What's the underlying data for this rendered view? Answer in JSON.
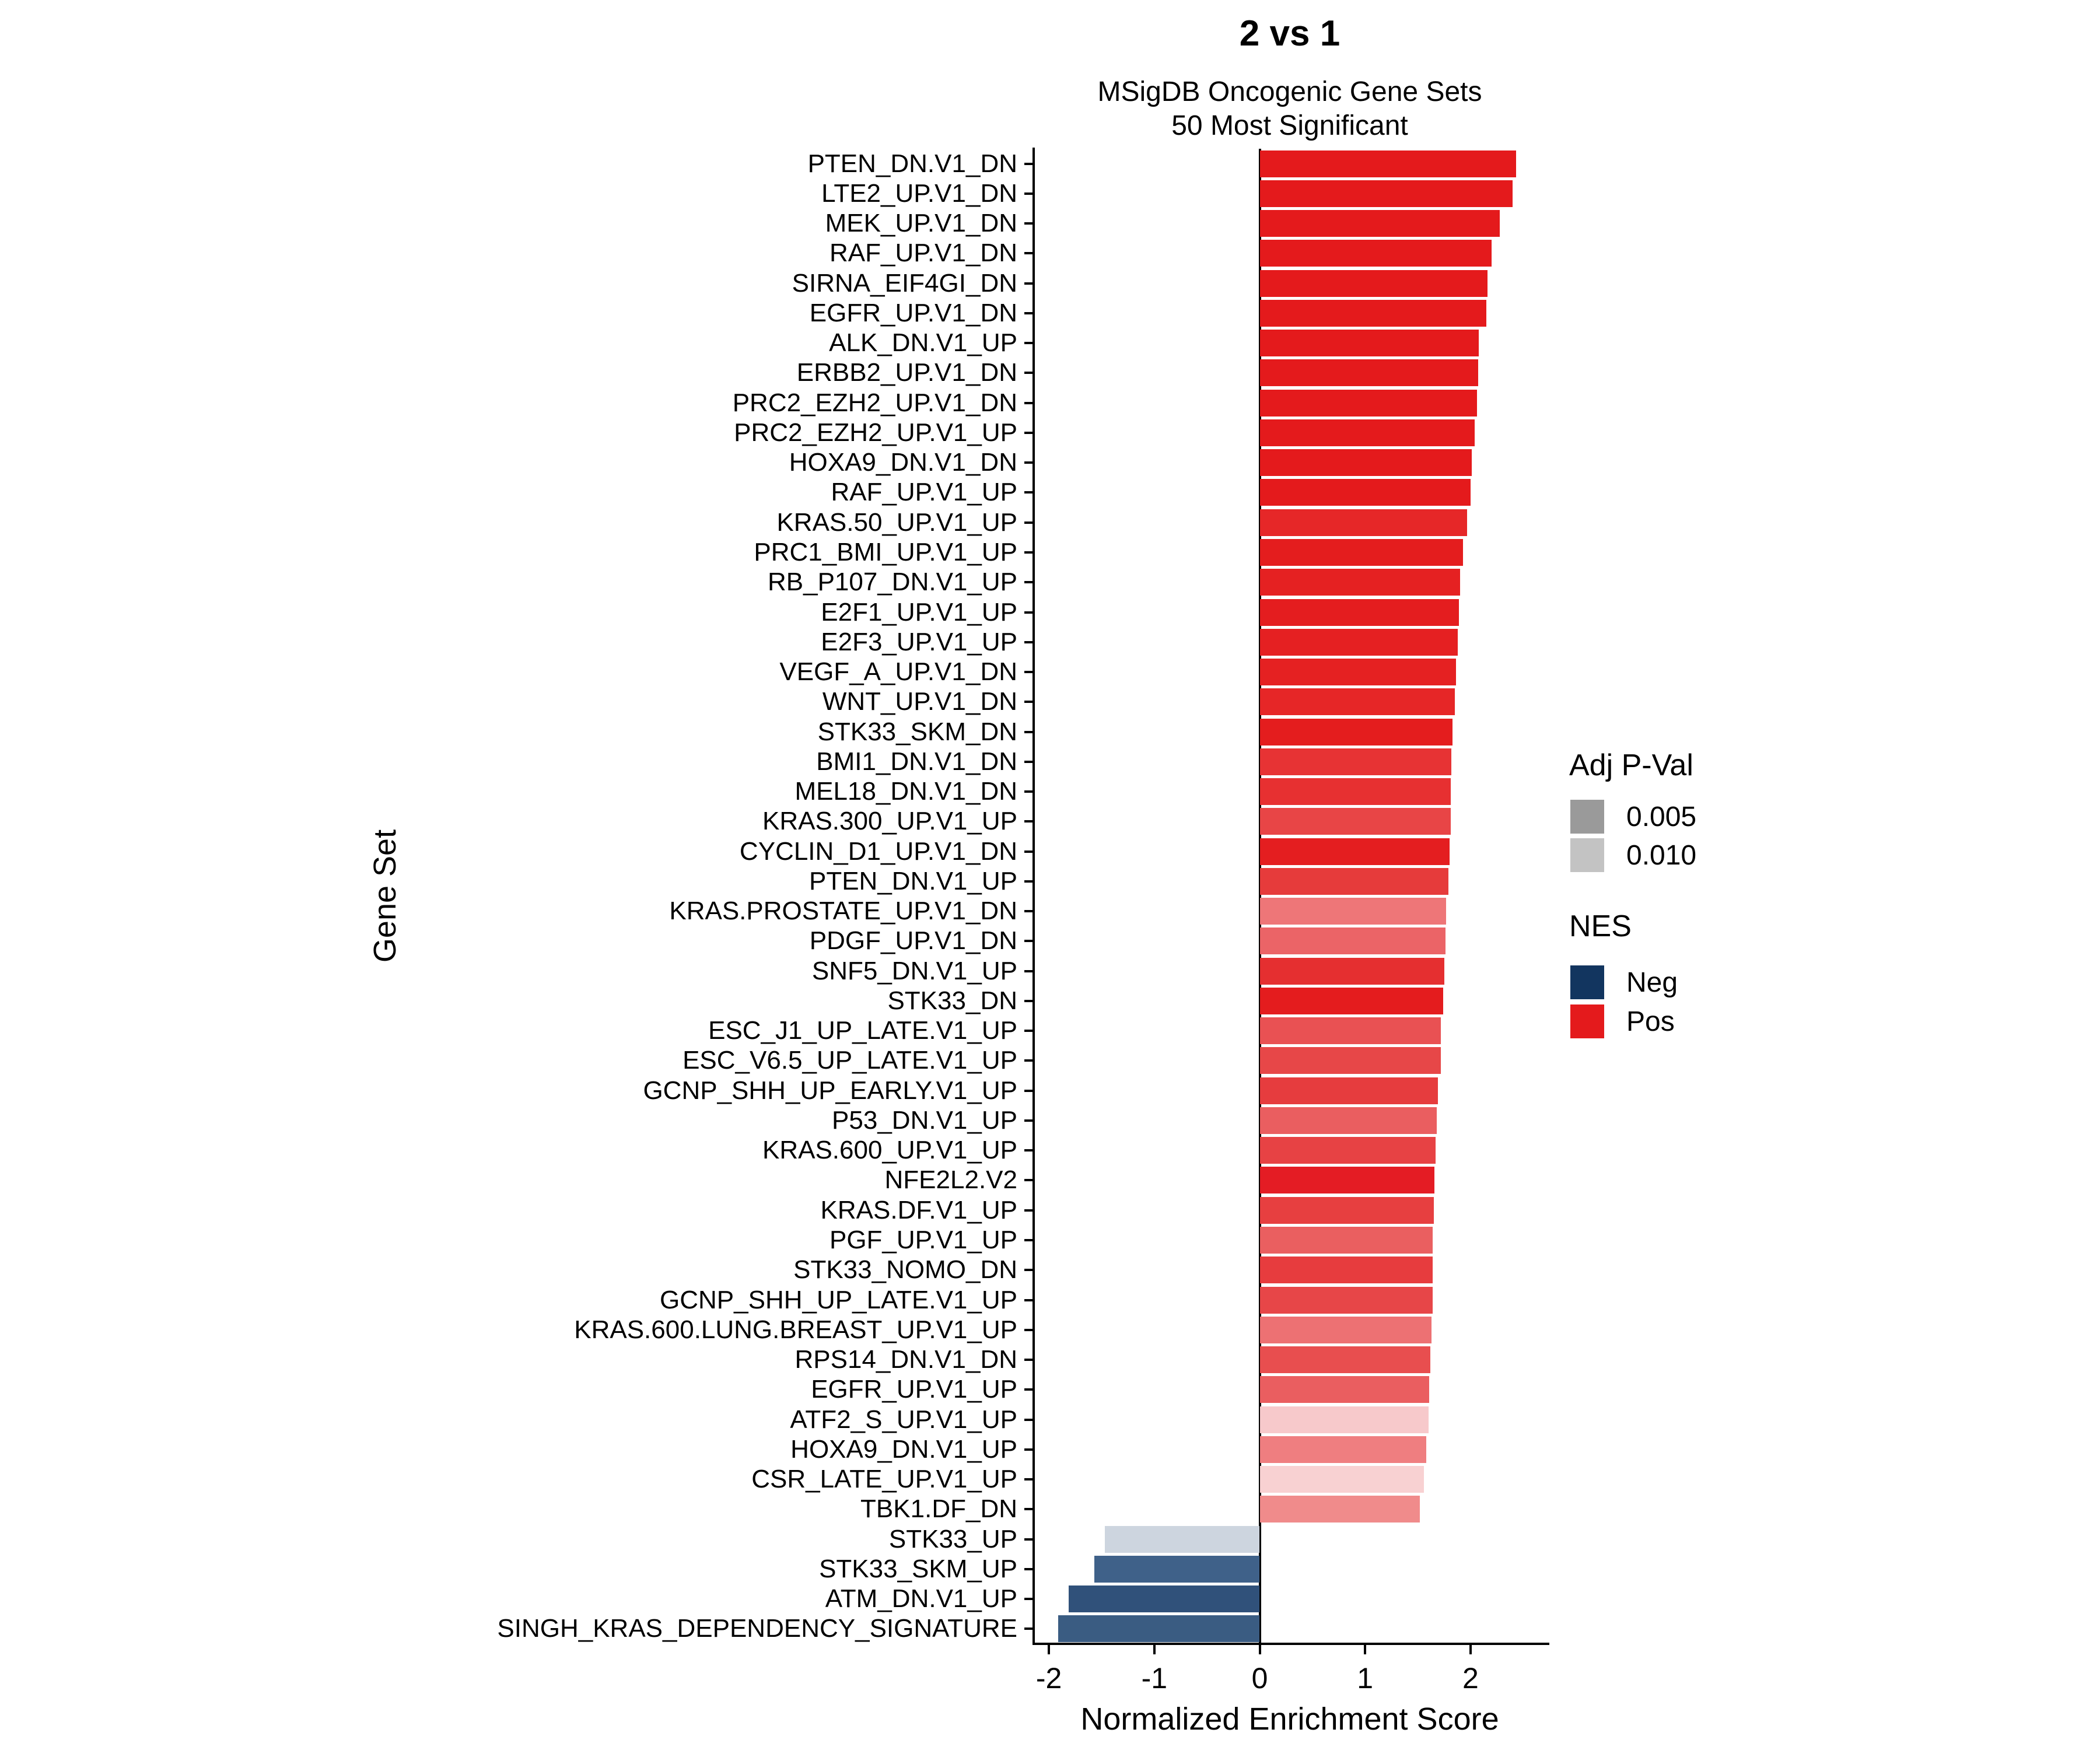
{
  "title": "2 vs 1",
  "subtitle_line1": "MSigDB Oncogenic Gene Sets",
  "subtitle_line2": "50 Most Significant",
  "legend": {
    "pval_title": "Adj P-Val",
    "pval_items": [
      {
        "label": "0.005",
        "color": "#9A9A9A"
      },
      {
        "label": "0.010",
        "color": "#C3C3C3"
      }
    ],
    "nes_title": "NES",
    "nes_items": [
      {
        "label": "Neg",
        "color": "#12355F"
      },
      {
        "label": "Pos",
        "color": "#E41A1C"
      }
    ]
  },
  "chart_data": {
    "type": "bar",
    "orientation": "horizontal",
    "title": "2 vs 1",
    "subtitle": "MSigDB Oncogenic Gene Sets / 50 Most Significant",
    "xlabel": "Normalized Enrichment Score",
    "ylabel": "Gene Set",
    "xlim": [
      -2.15,
      2.72
    ],
    "x_ticks": [
      -2,
      -1,
      0,
      1,
      2
    ],
    "grid": false,
    "legend_position": "right",
    "color_encoding": "fill = NES sign (Neg navy / Pos red), opacity = Adj P-Val (darker = more significant)",
    "bars": [
      {
        "gene_set": "PTEN_DN.V1_DN",
        "nes": 2.43,
        "color": "#E41A1C"
      },
      {
        "gene_set": "LTE2_UP.V1_DN",
        "nes": 2.4,
        "color": "#E41A1C"
      },
      {
        "gene_set": "MEK_UP.V1_DN",
        "nes": 2.28,
        "color": "#E41A1C"
      },
      {
        "gene_set": "RAF_UP.V1_DN",
        "nes": 2.2,
        "color": "#E41A1C"
      },
      {
        "gene_set": "SIRNA_EIF4GI_DN",
        "nes": 2.16,
        "color": "#E41A1C"
      },
      {
        "gene_set": "EGFR_UP.V1_DN",
        "nes": 2.15,
        "color": "#E41A1C"
      },
      {
        "gene_set": "ALK_DN.V1_UP",
        "nes": 2.08,
        "color": "#E41A1C"
      },
      {
        "gene_set": "ERBB2_UP.V1_DN",
        "nes": 2.07,
        "color": "#E41A1C"
      },
      {
        "gene_set": "PRC2_EZH2_UP.V1_DN",
        "nes": 2.06,
        "color": "#E41A1C"
      },
      {
        "gene_set": "PRC2_EZH2_UP.V1_UP",
        "nes": 2.04,
        "color": "#E41A1C"
      },
      {
        "gene_set": "HOXA9_DN.V1_DN",
        "nes": 2.01,
        "color": "#E41A1C"
      },
      {
        "gene_set": "RAF_UP.V1_UP",
        "nes": 2.0,
        "color": "#E41A1C"
      },
      {
        "gene_set": "KRAS.50_UP.V1_UP",
        "nes": 1.97,
        "color": "#E62728"
      },
      {
        "gene_set": "PRC1_BMI_UP.V1_UP",
        "nes": 1.93,
        "color": "#E41D1E"
      },
      {
        "gene_set": "RB_P107_DN.V1_UP",
        "nes": 1.9,
        "color": "#E52122"
      },
      {
        "gene_set": "E2F1_UP.V1_UP",
        "nes": 1.89,
        "color": "#E41D1F"
      },
      {
        "gene_set": "E2F3_UP.V1_UP",
        "nes": 1.88,
        "color": "#E52022"
      },
      {
        "gene_set": "VEGF_A_UP.V1_DN",
        "nes": 1.86,
        "color": "#E52122"
      },
      {
        "gene_set": "WNT_UP.V1_DN",
        "nes": 1.85,
        "color": "#E62627"
      },
      {
        "gene_set": "STK33_SKM_DN",
        "nes": 1.83,
        "color": "#E41D1E"
      },
      {
        "gene_set": "BMI1_DN.V1_DN",
        "nes": 1.82,
        "color": "#E73334"
      },
      {
        "gene_set": "MEL18_DN.V1_DN",
        "nes": 1.81,
        "color": "#E73031"
      },
      {
        "gene_set": "KRAS.300_UP.V1_UP",
        "nes": 1.81,
        "color": "#E84546"
      },
      {
        "gene_set": "CYCLIN_D1_UP.V1_DN",
        "nes": 1.8,
        "color": "#E41E20"
      },
      {
        "gene_set": "PTEN_DN.V1_UP",
        "nes": 1.79,
        "color": "#E63B3B"
      },
      {
        "gene_set": "KRAS.PROSTATE_UP.V1_DN",
        "nes": 1.77,
        "color": "#EE7678"
      },
      {
        "gene_set": "PDGF_UP.V1_DN",
        "nes": 1.76,
        "color": "#EB6467"
      },
      {
        "gene_set": "SNF5_DN.V1_UP",
        "nes": 1.75,
        "color": "#E52F30"
      },
      {
        "gene_set": "STK33_DN",
        "nes": 1.74,
        "color": "#E41C1E"
      },
      {
        "gene_set": "ESC_J1_UP_LATE.V1_UP",
        "nes": 1.72,
        "color": "#E95153"
      },
      {
        "gene_set": "ESC_V6.5_UP_LATE.V1_UP",
        "nes": 1.72,
        "color": "#E74748"
      },
      {
        "gene_set": "GCNP_SHH_UP_EARLY.V1_UP",
        "nes": 1.69,
        "color": "#E63C3E"
      },
      {
        "gene_set": "P53_DN.V1_UP",
        "nes": 1.68,
        "color": "#EA5E60"
      },
      {
        "gene_set": "KRAS.600_UP.V1_UP",
        "nes": 1.67,
        "color": "#E74244"
      },
      {
        "gene_set": "NFE2L2.V2",
        "nes": 1.66,
        "color": "#E41C24"
      },
      {
        "gene_set": "KRAS.DF.V1_UP",
        "nes": 1.65,
        "color": "#E73F40"
      },
      {
        "gene_set": "PGF_UP.V1_UP",
        "nes": 1.64,
        "color": "#EA5F60"
      },
      {
        "gene_set": "STK33_NOMO_DN",
        "nes": 1.64,
        "color": "#E73C3E"
      },
      {
        "gene_set": "GCNP_SHH_UP_LATE.V1_UP",
        "nes": 1.64,
        "color": "#E74648"
      },
      {
        "gene_set": "KRAS.600.LUNG.BREAST_UP.V1_UP",
        "nes": 1.63,
        "color": "#ED7173"
      },
      {
        "gene_set": "RPS14_DN.V1_DN",
        "nes": 1.62,
        "color": "#E84E4F"
      },
      {
        "gene_set": "EGFR_UP.V1_UP",
        "nes": 1.61,
        "color": "#EA5E60"
      },
      {
        "gene_set": "ATF2_S_UP.V1_UP",
        "nes": 1.6,
        "color": "#F7C9CB"
      },
      {
        "gene_set": "HOXA9_DN.V1_UP",
        "nes": 1.58,
        "color": "#EF7E80"
      },
      {
        "gene_set": "CSR_LATE_UP.V1_UP",
        "nes": 1.56,
        "color": "#F8D1D2"
      },
      {
        "gene_set": "TBK1.DF_DN",
        "nes": 1.52,
        "color": "#F08B8B"
      },
      {
        "gene_set": "STK33_UP",
        "nes": -1.47,
        "color": "#CDD5DF"
      },
      {
        "gene_set": "STK33_SKM_UP",
        "nes": -1.57,
        "color": "#3F6189"
      },
      {
        "gene_set": "ATM_DN.V1_UP",
        "nes": -1.81,
        "color": "#30517A"
      },
      {
        "gene_set": "SINGH_KRAS_DEPENDENCY_SIGNATURE",
        "nes": -1.91,
        "color": "#3A5C82"
      }
    ]
  }
}
